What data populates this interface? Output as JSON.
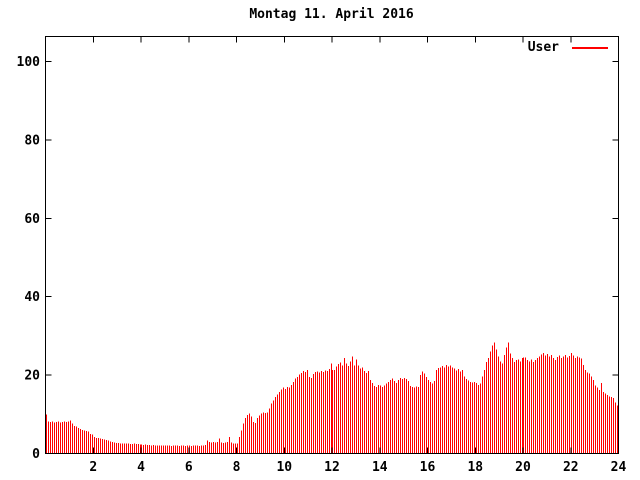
{
  "colors": {
    "background": "#ffffff",
    "axis": "#000000",
    "text": "#000000",
    "series": "#ff0000"
  },
  "legend": {
    "label": "User"
  },
  "chart_data": {
    "type": "bar",
    "style": "impulses",
    "title": "Montag 11. April 2016",
    "xlabel": "",
    "ylabel": "",
    "x_unit": "hour-of-day",
    "sample_interval_minutes": 5,
    "xlim": [
      0,
      24
    ],
    "ylim": [
      0,
      100
    ],
    "x_ticks": [
      2,
      4,
      6,
      8,
      10,
      12,
      14,
      16,
      18,
      20,
      22,
      24
    ],
    "y_ticks": [
      0,
      20,
      40,
      60,
      80,
      100
    ],
    "grid": false,
    "legend_position": "top-right-inside",
    "series": [
      {
        "name": "User",
        "color": "#ff0000",
        "values": [
          10.0,
          8.2,
          8.0,
          8.1,
          7.9,
          8.0,
          8.1,
          7.9,
          8.0,
          8.1,
          8.0,
          8.2,
          8.4,
          7.6,
          7.0,
          6.9,
          6.5,
          6.3,
          6.0,
          5.9,
          5.8,
          5.6,
          5.0,
          4.8,
          4.2,
          4.0,
          3.9,
          3.8,
          3.7,
          3.6,
          3.5,
          3.3,
          3.0,
          2.9,
          2.8,
          2.7,
          2.7,
          2.6,
          2.6,
          2.5,
          2.5,
          2.5,
          2.4,
          2.4,
          2.5,
          2.4,
          2.4,
          2.3,
          2.3,
          2.2,
          2.3,
          2.2,
          2.2,
          2.1,
          2.2,
          2.1,
          2.1,
          2.0,
          2.1,
          2.0,
          2.0,
          2.1,
          2.0,
          1.9,
          2.0,
          2.1,
          2.0,
          1.9,
          2.0,
          2.0,
          1.9,
          2.0,
          2.0,
          1.9,
          2.0,
          2.1,
          2.0,
          1.9,
          2.0,
          2.1,
          2.2,
          3.3,
          2.9,
          2.8,
          2.9,
          2.8,
          2.9,
          3.8,
          2.8,
          2.7,
          2.8,
          2.9,
          4.2,
          2.8,
          2.6,
          2.5,
          2.5,
          4.2,
          5.9,
          7.6,
          9.0,
          9.8,
          10.2,
          9.4,
          8.0,
          7.8,
          9.0,
          9.7,
          10.2,
          10.4,
          10.3,
          10.5,
          11.5,
          12.7,
          13.5,
          14.4,
          15.0,
          15.7,
          16.3,
          16.8,
          16.5,
          17.0,
          16.8,
          17.5,
          18.3,
          19.1,
          19.5,
          20.2,
          20.5,
          21.0,
          20.8,
          21.3,
          19.5,
          19.2,
          20.3,
          20.8,
          20.9,
          20.7,
          21.0,
          20.8,
          21.2,
          21.0,
          21.5,
          23.0,
          21.3,
          21.3,
          22.2,
          22.8,
          23.2,
          22.5,
          24.3,
          23.0,
          22.3,
          23.5,
          24.7,
          22.5,
          24.0,
          22.5,
          21.7,
          22.0,
          21.0,
          20.5,
          21.0,
          18.7,
          18.0,
          17.2,
          17.0,
          17.5,
          17.3,
          17.0,
          17.4,
          17.8,
          18.3,
          18.8,
          19.1,
          18.5,
          18.0,
          18.8,
          19.2,
          19.0,
          19.3,
          19.0,
          18.5,
          17.2,
          17.0,
          16.8,
          17.1,
          17.0,
          20.0,
          20.9,
          20.4,
          19.5,
          18.7,
          18.2,
          17.9,
          18.5,
          21.3,
          21.8,
          22.0,
          22.3,
          21.9,
          22.6,
          22.2,
          22.4,
          22.0,
          21.7,
          21.2,
          21.5,
          20.9,
          21.3,
          19.6,
          19.0,
          18.6,
          18.3,
          18.1,
          18.2,
          18.0,
          17.5,
          17.8,
          19.6,
          21.3,
          23.4,
          24.3,
          26.0,
          27.5,
          28.3,
          26.5,
          24.7,
          23.5,
          23.0,
          25.1,
          27.0,
          28.3,
          25.5,
          24.3,
          23.4,
          23.8,
          24.0,
          23.5,
          24.3,
          24.5,
          24.5,
          23.8,
          23.5,
          24.0,
          23.4,
          23.8,
          24.3,
          24.7,
          25.2,
          25.6,
          25.0,
          25.4,
          24.8,
          25.1,
          24.4,
          23.8,
          24.6,
          25.0,
          24.3,
          24.8,
          25.1,
          24.5,
          24.9,
          25.6,
          25.0,
          24.3,
          24.7,
          24.5,
          24.2,
          22.6,
          21.3,
          20.6,
          20.4,
          19.6,
          18.7,
          17.4,
          16.8,
          16.2,
          18.0,
          15.7,
          15.3,
          14.9,
          14.6,
          14.4,
          14.1,
          13.0,
          12.2
        ]
      }
    ]
  }
}
